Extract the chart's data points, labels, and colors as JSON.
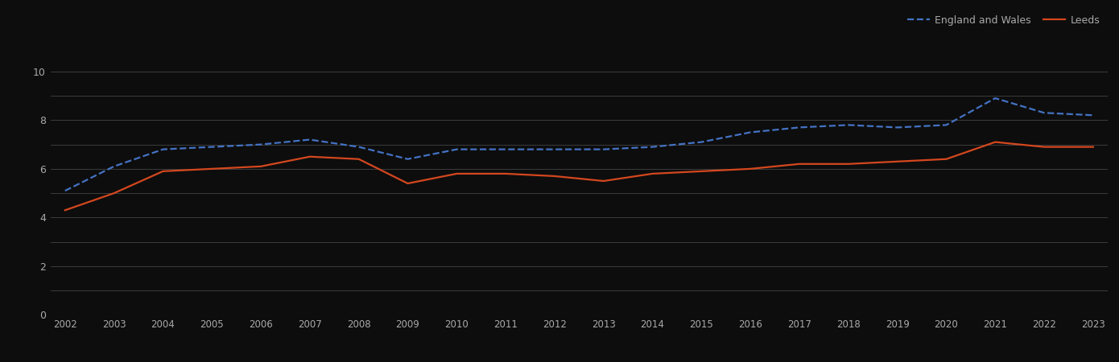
{
  "years": [
    2002,
    2003,
    2004,
    2005,
    2006,
    2007,
    2008,
    2009,
    2010,
    2011,
    2012,
    2013,
    2014,
    2015,
    2016,
    2017,
    2018,
    2019,
    2020,
    2021,
    2022,
    2023
  ],
  "england_wales": [
    5.1,
    6.1,
    6.8,
    6.9,
    7.0,
    7.2,
    6.9,
    6.4,
    6.8,
    6.8,
    6.8,
    6.8,
    6.9,
    7.1,
    7.5,
    7.7,
    7.8,
    7.7,
    7.8,
    8.9,
    8.3,
    8.2
  ],
  "leeds": [
    4.3,
    5.0,
    5.9,
    6.0,
    6.1,
    6.5,
    6.4,
    5.4,
    5.8,
    5.8,
    5.7,
    5.5,
    5.8,
    5.9,
    6.0,
    6.2,
    6.2,
    6.3,
    6.4,
    7.1,
    6.9,
    6.9
  ],
  "england_wales_color": "#4472c4",
  "leeds_color": "#d4471e",
  "background_color": "#0d0d0d",
  "text_color": "#aaaaaa",
  "grid_color": "#444444",
  "ylim": [
    0,
    11
  ],
  "yticks": [
    0,
    2,
    4,
    6,
    8,
    10
  ],
  "yticks_minor": [
    1,
    3,
    5,
    7,
    9
  ],
  "legend_labels": [
    "England and Wales",
    "Leeds"
  ],
  "figsize": [
    13.9,
    4.5
  ],
  "dpi": 100
}
